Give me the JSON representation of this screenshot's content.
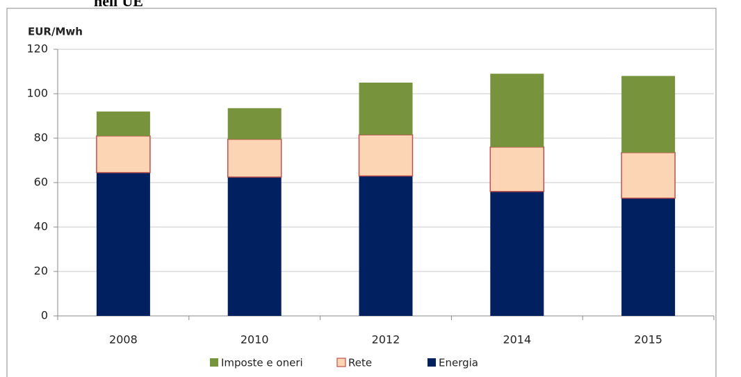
{
  "chart_data": {
    "type": "stacked_bar",
    "title": "nell'UE",
    "y_label": "EUR/Mwh",
    "categories": [
      "2008",
      "2010",
      "2012",
      "2014",
      "2015"
    ],
    "series": [
      {
        "name": "Imposte e oneri",
        "color": "#77933c",
        "values": [
          11,
          14,
          23.5,
          33,
          34.5
        ]
      },
      {
        "name": "Rete",
        "color": "#fcd5b5",
        "values": [
          16.5,
          17,
          18.5,
          20,
          20.5
        ]
      },
      {
        "name": "Energia",
        "color": "#002060",
        "values": [
          64.5,
          62.5,
          63,
          56,
          53
        ]
      }
    ],
    "ylim": [
      0,
      120
    ],
    "yticks": [
      0,
      20,
      40,
      60,
      80,
      100,
      120
    ],
    "grid": true
  }
}
